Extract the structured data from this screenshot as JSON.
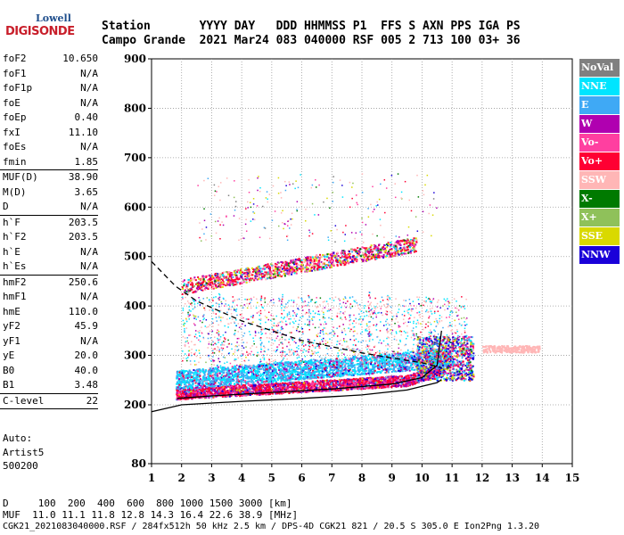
{
  "logo": {
    "top": "Lowell",
    "bottom": "DIGISONDE"
  },
  "header": {
    "line1": "Station       YYYY DAY   DDD HHMMSS P1  FFS S AXN PPS IGA PS",
    "line2": "Campo Grande  2021 Mar24 083 040000 RSF 005 2 713 100 03+ 36"
  },
  "params": {
    "group1": [
      {
        "label": "foF2",
        "value": "10.650"
      },
      {
        "label": "foF1",
        "value": "N/A"
      },
      {
        "label": "foF1p",
        "value": "N/A"
      },
      {
        "label": "foE",
        "value": "N/A"
      },
      {
        "label": "foEp",
        "value": "0.40"
      },
      {
        "label": "fxI",
        "value": "11.10"
      },
      {
        "label": "foEs",
        "value": "N/A"
      },
      {
        "label": "fmin",
        "value": "1.85"
      }
    ],
    "group2": [
      {
        "label": "MUF(D)",
        "value": "38.90"
      },
      {
        "label": "M(D)",
        "value": "3.65"
      },
      {
        "label": "D",
        "value": "N/A"
      }
    ],
    "group3": [
      {
        "label": "h`F",
        "value": "203.5"
      },
      {
        "label": "h`F2",
        "value": "203.5"
      },
      {
        "label": "h`E",
        "value": "N/A"
      },
      {
        "label": "h`Es",
        "value": "N/A"
      }
    ],
    "group4": [
      {
        "label": "hmF2",
        "value": "250.6"
      },
      {
        "label": "hmF1",
        "value": "N/A"
      },
      {
        "label": "hmE",
        "value": "110.0"
      },
      {
        "label": "yF2",
        "value": "45.9"
      },
      {
        "label": "yF1",
        "value": "N/A"
      },
      {
        "label": "yE",
        "value": "20.0"
      },
      {
        "label": "B0",
        "value": "40.0"
      },
      {
        "label": "B1",
        "value": "3.48"
      }
    ],
    "group5": [
      {
        "label": "C-level",
        "value": "22"
      }
    ]
  },
  "notes": [
    "Auto:",
    "Artist5",
    "500200"
  ],
  "footer": {
    "line1": "D     100  200  400  600  800 1000 1500 3000 [km]",
    "line2": "MUF  11.0 11.1 11.8 12.8 14.3 16.4 22.6 38.9 [MHz]",
    "line3": "CGK21_2021083040000.RSF / 284fx512h 50 kHz 2.5 km / DPS-4D CGK21 821 / 20.5 S 305.0 E Ion2Png 1.3.20"
  },
  "legend": [
    {
      "label": "NoVal",
      "color": "#808080"
    },
    {
      "label": "NNE",
      "color": "#00e5ff"
    },
    {
      "label": "E",
      "color": "#3fa9f5"
    },
    {
      "label": "W",
      "color": "#b000b0"
    },
    {
      "label": "Vo-",
      "color": "#ff3fa0"
    },
    {
      "label": "Vo+",
      "color": "#ff0033"
    },
    {
      "label": "SSW",
      "color": "#ffb6b6"
    },
    {
      "label": "X-",
      "color": "#007a00"
    },
    {
      "label": "X+",
      "color": "#8fc15a"
    },
    {
      "label": "SSE",
      "color": "#d9d900"
    },
    {
      "label": "NNW",
      "color": "#1a00d9"
    }
  ],
  "chart_data": {
    "type": "scatter",
    "xlabel": "",
    "ylabel": "",
    "xlim": [
      1,
      15
    ],
    "ylim": [
      80,
      900
    ],
    "xticks": [
      "1",
      "2",
      "3",
      "4",
      "5",
      "6",
      "7",
      "8",
      "9",
      "10",
      "11",
      "12",
      "13",
      "14",
      "15"
    ],
    "yticks": [
      "80",
      "200",
      "300",
      "400",
      "500",
      "600",
      "700",
      "800",
      "900"
    ],
    "grid": true,
    "echo_bands": [
      {
        "name": "F2-trace",
        "x_start": 1.8,
        "x_end": 10.6,
        "h_start": 212,
        "h_end": 250
      },
      {
        "name": "O-trace-upper",
        "x_start": 1.8,
        "x_end": 11.0,
        "h_start": 230,
        "h_end": 320
      },
      {
        "name": "multihop",
        "x_start": 2.0,
        "x_end": 9.8,
        "h_start": 430,
        "h_end": 525
      }
    ],
    "profile_curve": [
      [
        1.0,
        186
      ],
      [
        2,
        200
      ],
      [
        4,
        207
      ],
      [
        6,
        213
      ],
      [
        8,
        220
      ],
      [
        9.5,
        230
      ],
      [
        10.5,
        245
      ],
      [
        10.65,
        251
      ]
    ],
    "trace_curve": [
      [
        1.85,
        213
      ],
      [
        3,
        218
      ],
      [
        5,
        225
      ],
      [
        7,
        232
      ],
      [
        9,
        242
      ],
      [
        10,
        255
      ],
      [
        10.5,
        280
      ],
      [
        10.65,
        350
      ]
    ],
    "dashed_curve": [
      [
        1.0,
        490
      ],
      [
        1.8,
        440
      ],
      [
        2.5,
        410
      ],
      [
        4,
        370
      ],
      [
        6,
        330
      ],
      [
        8,
        305
      ],
      [
        10,
        285
      ],
      [
        10.65,
        275
      ]
    ]
  }
}
